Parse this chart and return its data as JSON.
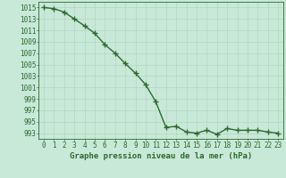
{
  "x": [
    0,
    1,
    2,
    3,
    4,
    5,
    6,
    7,
    8,
    9,
    10,
    11,
    12,
    13,
    14,
    15,
    16,
    17,
    18,
    19,
    20,
    21,
    22,
    23
  ],
  "y": [
    1015.0,
    1014.8,
    1014.2,
    1013.0,
    1011.8,
    1010.5,
    1008.5,
    1007.0,
    1005.2,
    1003.5,
    1001.5,
    998.5,
    994.0,
    994.2,
    993.2,
    993.0,
    993.5,
    992.8,
    993.8,
    993.5,
    993.5,
    993.5,
    993.2,
    993.0
  ],
  "line_color": "#2d6a2d",
  "marker": "+",
  "marker_size": 4,
  "bg_color": "#c8e8d8",
  "grid_color": "#b0cfc0",
  "ylabel_ticks": [
    993,
    995,
    997,
    999,
    1001,
    1003,
    1005,
    1007,
    1009,
    1011,
    1013,
    1015
  ],
  "ylim": [
    992,
    1016
  ],
  "xlim": [
    -0.5,
    23.5
  ],
  "xlabel": "Graphe pression niveau de la mer (hPa)",
  "xlabel_fontsize": 6.5,
  "tick_fontsize": 5.5,
  "line_width": 1.0
}
